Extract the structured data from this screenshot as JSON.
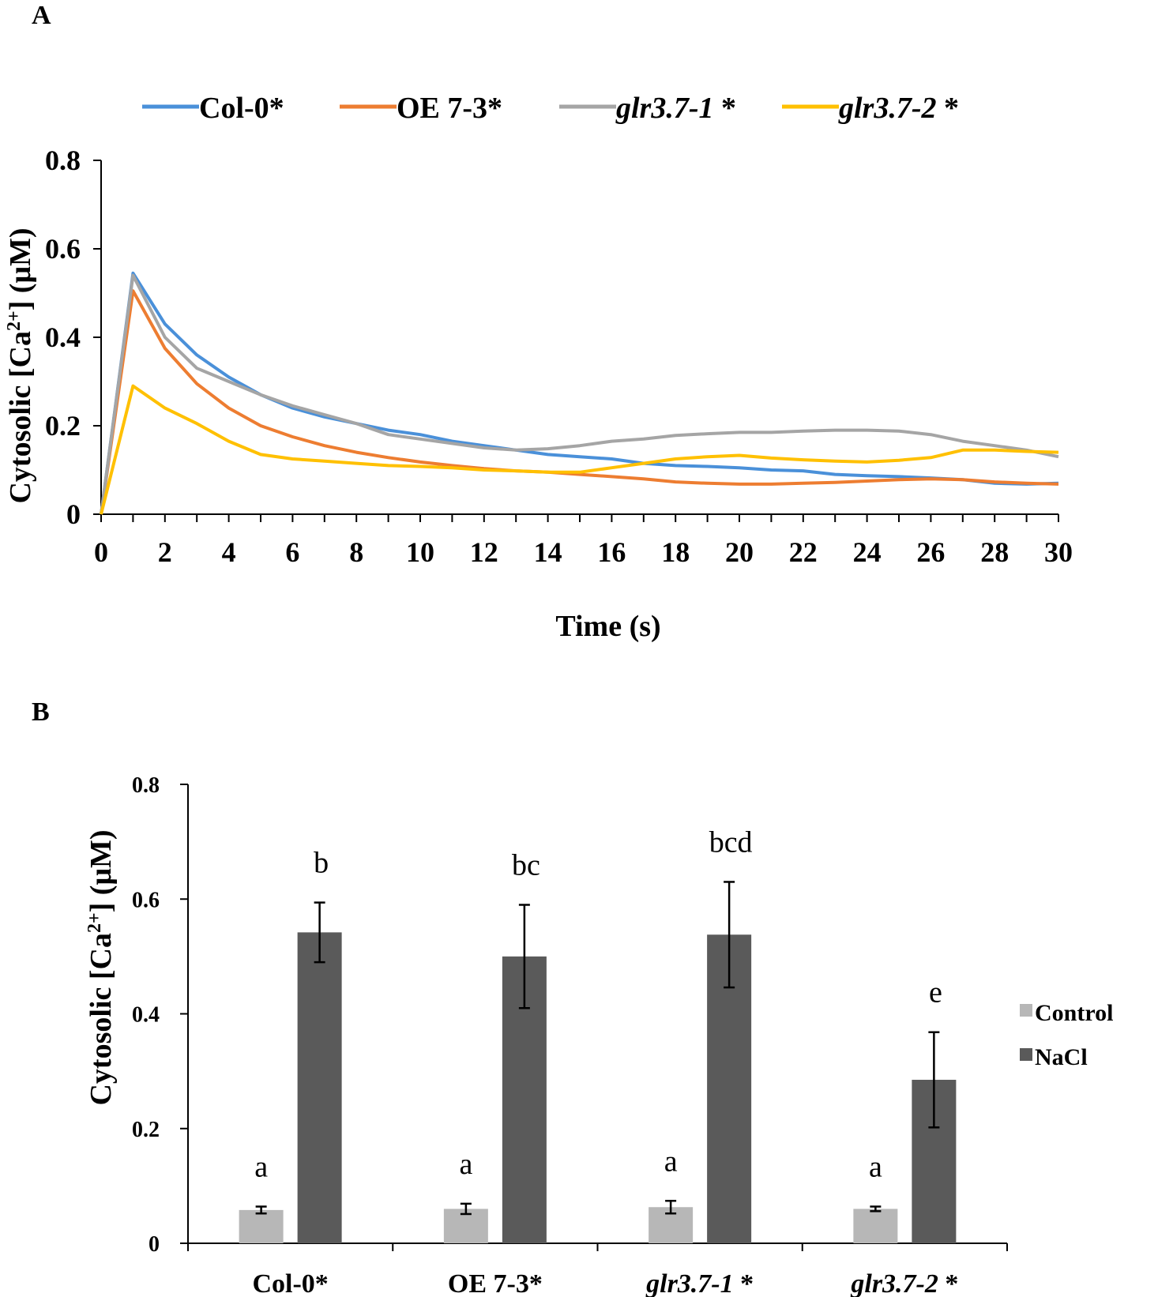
{
  "colors": {
    "col0": "#4a90d9",
    "oe73": "#ed7d31",
    "glr371": "#a5a5a5",
    "glr372": "#ffc000",
    "control": "#b7b7b7",
    "nacl": "#5a5a5a",
    "axis": "#000000"
  },
  "chart_data": [
    {
      "panel": "A",
      "type": "line",
      "xlabel": "Time (s)",
      "ylabel_prefix": "Cytosolic [Ca",
      "ylabel_sup": "2+",
      "ylabel_suffix": "] (μM)",
      "xlim": [
        0,
        30
      ],
      "ylim": [
        0,
        0.8
      ],
      "x_ticks": [
        0,
        2,
        4,
        6,
        8,
        10,
        12,
        14,
        16,
        18,
        20,
        22,
        24,
        26,
        28,
        30
      ],
      "y_ticks": [
        0,
        0.2,
        0.4,
        0.6,
        0.8
      ],
      "y_tick_labels": [
        "0",
        "0.2",
        "0.4",
        "0.6",
        "0.8"
      ],
      "x": [
        0,
        1,
        2,
        3,
        4,
        5,
        6,
        7,
        8,
        9,
        10,
        11,
        12,
        13,
        14,
        15,
        16,
        17,
        18,
        19,
        20,
        21,
        22,
        23,
        24,
        25,
        26,
        27,
        28,
        29,
        30
      ],
      "series": [
        {
          "name": "Col-0*",
          "italic": false,
          "color_key": "col0",
          "values": [
            0,
            0.545,
            0.43,
            0.36,
            0.31,
            0.27,
            0.24,
            0.22,
            0.205,
            0.19,
            0.18,
            0.165,
            0.155,
            0.145,
            0.135,
            0.13,
            0.125,
            0.115,
            0.11,
            0.108,
            0.105,
            0.1,
            0.098,
            0.09,
            0.087,
            0.085,
            0.082,
            0.078,
            0.07,
            0.068,
            0.07
          ]
        },
        {
          "name": "OE 7-3*",
          "italic": false,
          "color_key": "oe73",
          "values": [
            0,
            0.505,
            0.375,
            0.295,
            0.24,
            0.2,
            0.175,
            0.155,
            0.14,
            0.128,
            0.118,
            0.11,
            0.103,
            0.098,
            0.095,
            0.09,
            0.085,
            0.08,
            0.073,
            0.07,
            0.068,
            0.068,
            0.07,
            0.072,
            0.075,
            0.078,
            0.08,
            0.078,
            0.073,
            0.07,
            0.068
          ]
        },
        {
          "name": "glr3.7-1",
          "mark": "*",
          "italic": true,
          "color_key": "glr371",
          "values": [
            0,
            0.54,
            0.4,
            0.33,
            0.3,
            0.27,
            0.245,
            0.225,
            0.205,
            0.18,
            0.17,
            0.16,
            0.15,
            0.145,
            0.148,
            0.155,
            0.165,
            0.17,
            0.178,
            0.182,
            0.185,
            0.185,
            0.188,
            0.19,
            0.19,
            0.188,
            0.18,
            0.165,
            0.155,
            0.145,
            0.13
          ]
        },
        {
          "name": "glr3.7-2",
          "mark": "*",
          "italic": true,
          "color_key": "glr372",
          "values": [
            0,
            0.29,
            0.24,
            0.205,
            0.165,
            0.135,
            0.125,
            0.12,
            0.115,
            0.11,
            0.108,
            0.105,
            0.1,
            0.098,
            0.095,
            0.095,
            0.105,
            0.115,
            0.125,
            0.13,
            0.133,
            0.127,
            0.123,
            0.12,
            0.118,
            0.122,
            0.128,
            0.145,
            0.145,
            0.142,
            0.14
          ]
        }
      ]
    },
    {
      "panel": "B",
      "type": "bar",
      "ylabel_prefix": "Cytosolic [Ca",
      "ylabel_sup": "2+",
      "ylabel_suffix": "] (μM)",
      "ylim": [
        0,
        0.8
      ],
      "y_ticks": [
        0,
        0.2,
        0.4,
        0.6,
        0.8
      ],
      "y_tick_labels": [
        "0",
        "0.2",
        "0.4",
        "0.6",
        "0.8"
      ],
      "categories": [
        {
          "name": "Col-0*",
          "italic": false
        },
        {
          "name": "OE 7-3*",
          "italic": false
        },
        {
          "name": "glr3.7-1",
          "mark": "*",
          "italic": true
        },
        {
          "name": "glr3.7-2",
          "mark": "*",
          "italic": true
        }
      ],
      "series": [
        {
          "name": "Control",
          "color_key": "control",
          "values": [
            0.058,
            0.06,
            0.063,
            0.06
          ],
          "errors": [
            0.006,
            0.009,
            0.011,
            0.004
          ],
          "letters": [
            "a",
            "a",
            "a",
            "a"
          ]
        },
        {
          "name": "NaCl",
          "color_key": "nacl",
          "values": [
            0.542,
            0.5,
            0.538,
            0.285
          ],
          "errors": [
            0.052,
            0.09,
            0.092,
            0.083
          ],
          "letters": [
            "b",
            "bc",
            "bcd",
            "e"
          ]
        }
      ],
      "legend_position": "right"
    }
  ],
  "labels": {
    "panel_a": "A",
    "panel_b": "B"
  }
}
